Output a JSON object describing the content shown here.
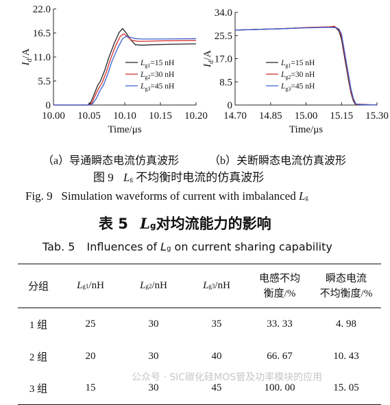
{
  "chart_data": [
    {
      "type": "line",
      "panel": "a",
      "ylabel": "I_d/A",
      "xlabel": "Time/μs",
      "xlim": [
        10.0,
        10.2
      ],
      "ylim": [
        0,
        22.0
      ],
      "xticks": [
        "10.00",
        "10.05",
        "10.10",
        "10.15",
        "10.20"
      ],
      "yticks": [
        "0",
        "5.5",
        "11.0",
        "16.5",
        "22.0"
      ],
      "legend": [
        "L_g1=15 nH",
        "L_g2=30 nH",
        "L_g3=45 nH"
      ],
      "legend_position": "right-center",
      "series": [
        {
          "name": "L_g1=15 nH",
          "color": "#222222",
          "x": [
            10.0,
            10.048,
            10.052,
            10.056,
            10.062,
            10.066,
            10.072,
            10.078,
            10.085,
            10.092,
            10.097,
            10.102,
            10.108,
            10.115,
            10.125,
            10.14,
            10.16,
            10.2
          ],
          "y": [
            0,
            0,
            0.5,
            2,
            4.5,
            5.5,
            8,
            11,
            14,
            16.6,
            17.5,
            16.5,
            15,
            13.8,
            13.7,
            13.8,
            13.9,
            14
          ]
        },
        {
          "name": "L_g2=30 nH",
          "color": "#d42a2a",
          "x": [
            10.0,
            10.05,
            10.054,
            10.058,
            10.064,
            10.068,
            10.074,
            10.08,
            10.087,
            10.094,
            10.099,
            10.104,
            10.11,
            10.118,
            10.13,
            10.15,
            10.2
          ],
          "y": [
            0,
            0,
            0.5,
            2,
            4,
            5,
            7.5,
            10.5,
            13.5,
            15.8,
            16.3,
            15.6,
            14.8,
            14.6,
            14.6,
            14.7,
            14.8
          ]
        },
        {
          "name": "L_g3=45 nH",
          "color": "#3a5fd0",
          "x": [
            10.0,
            10.052,
            10.056,
            10.06,
            10.066,
            10.07,
            10.076,
            10.082,
            10.09,
            10.097,
            10.102,
            10.108,
            10.115,
            10.125,
            10.14,
            10.2
          ],
          "y": [
            0,
            0,
            0.5,
            1.5,
            3.5,
            4.5,
            7,
            10,
            13,
            15.2,
            15.7,
            15.5,
            15.2,
            15.1,
            15.1,
            15.2
          ]
        }
      ]
    },
    {
      "type": "line",
      "panel": "b",
      "ylabel": "I_d/A",
      "xlabel": "Time/μs",
      "xlim": [
        14.7,
        15.3
      ],
      "ylim": [
        0,
        34.0
      ],
      "xticks": [
        "14.70",
        "14.85",
        "15.00",
        "15.15",
        "15.30"
      ],
      "yticks": [
        "0",
        "8.5",
        "17.0",
        "25.5",
        "34.0"
      ],
      "legend": [
        "L_g1=15 nH",
        "L_g2=30 nH",
        "L_g3=45 nH"
      ],
      "legend_position": "center",
      "series": [
        {
          "name": "L_g1=15 nH",
          "color": "#222222",
          "x": [
            14.7,
            14.9,
            15.0,
            15.1,
            15.12,
            15.13,
            15.14,
            15.15,
            15.16,
            15.17,
            15.18,
            15.19,
            15.2,
            15.21,
            15.22,
            15.3
          ],
          "y": [
            27.5,
            28,
            28.4,
            28.6,
            28.7,
            28,
            27,
            24,
            19,
            14,
            9,
            4.5,
            1.5,
            0,
            0.3,
            0
          ]
        },
        {
          "name": "L_g2=30 nH",
          "color": "#d42a2a",
          "x": [
            14.7,
            14.9,
            15.0,
            15.1,
            15.12,
            15.13,
            15.14,
            15.15,
            15.16,
            15.17,
            15.18,
            15.19,
            15.2,
            15.21,
            15.22,
            15.3
          ],
          "y": [
            27.5,
            28,
            28.4,
            28.7,
            28.9,
            28.2,
            27.5,
            25,
            20,
            15,
            10,
            5,
            2,
            0.2,
            0.3,
            0
          ]
        },
        {
          "name": "L_g3=45 nH",
          "color": "#3a5fd0",
          "x": [
            14.7,
            14.9,
            15.0,
            15.1,
            15.12,
            15.13,
            15.14,
            15.15,
            15.16,
            15.17,
            15.18,
            15.19,
            15.2,
            15.21,
            15.22,
            15.3
          ],
          "y": [
            27.5,
            28,
            28.3,
            28.5,
            28.4,
            28.3,
            27.8,
            26,
            21,
            16,
            11,
            6,
            2.5,
            0.5,
            0.2,
            0
          ]
        }
      ]
    }
  ],
  "captions": {
    "sub_a": "（a）导通瞬态电流仿真波形",
    "sub_b": "（b）关断瞬态电流仿真波形",
    "fig_cn_num": "图 9",
    "fig_cn_text": "不均衡时电流的仿真波形",
    "fig_en": "Fig. 9   Simulation waveforms of current with imbalanced",
    "table_cn_num": "表 5",
    "table_cn_text": "对均流能力的影响",
    "table_en_num": "Tab. 5",
    "table_en_text": "Influences of",
    "table_en_tail": "on current sharing capability"
  },
  "table": {
    "headers": {
      "group": "分组",
      "lg1": "/nH",
      "lg2": "/nH",
      "lg3": "/nH",
      "inductance_line1": "电感不均",
      "inductance_line2": "衡度/%",
      "transient_line1": "瞬态电流",
      "transient_line2": "不均衡度/%"
    },
    "rows": [
      [
        "1 组",
        "25",
        "30",
        "35",
        "33. 33",
        "4. 98"
      ],
      [
        "2 组",
        "20",
        "30",
        "40",
        "66. 67",
        "10. 43"
      ],
      [
        "3 组",
        "15",
        "30",
        "45",
        "100. 00",
        "15. 05"
      ]
    ]
  },
  "watermark": "公众号 · SIC碳化硅MOS管及功率模块的应用"
}
